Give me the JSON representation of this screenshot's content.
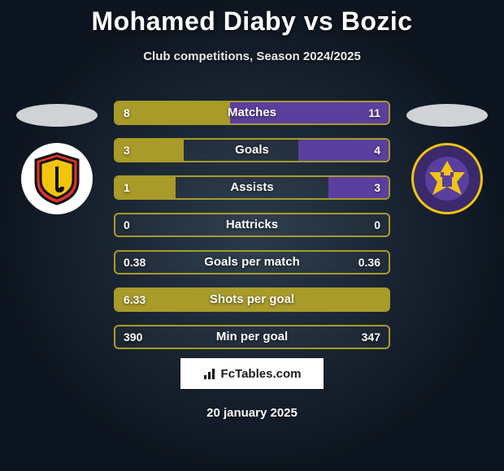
{
  "header": {
    "title": "Mohamed Diaby vs Bozic",
    "subtitle": "Club competitions, Season 2024/2025"
  },
  "players": {
    "left_color": "#a89b2a",
    "right_color": "#5a3f9e"
  },
  "stats": [
    {
      "label": "Matches",
      "left_val": "8",
      "right_val": "11",
      "left_pct": 42,
      "right_pct": 58
    },
    {
      "label": "Goals",
      "left_val": "3",
      "right_val": "4",
      "left_pct": 25,
      "right_pct": 33
    },
    {
      "label": "Assists",
      "left_val": "1",
      "right_val": "3",
      "left_pct": 22,
      "right_pct": 22
    },
    {
      "label": "Hattricks",
      "left_val": "0",
      "right_val": "0",
      "left_pct": 0,
      "right_pct": 0
    },
    {
      "label": "Goals per match",
      "left_val": "0.38",
      "right_val": "0.36",
      "left_pct": 0,
      "right_pct": 0
    },
    {
      "label": "Shots per goal",
      "left_val": "6.33",
      "right_val": "",
      "left_pct": 100,
      "right_pct": 0
    },
    {
      "label": "Min per goal",
      "left_val": "390",
      "right_val": "347",
      "left_pct": 0,
      "right_pct": 0
    }
  ],
  "stat_style": {
    "border_color": "#a89b2a",
    "left_fill_color": "#a89b2a",
    "right_fill_color": "#5a3f9e"
  },
  "brand": {
    "text": "FcTables.com"
  },
  "date": "20 january 2025",
  "crests": {
    "left_svg": "shield-red-yellow",
    "right_svg": "maribor-purple"
  }
}
